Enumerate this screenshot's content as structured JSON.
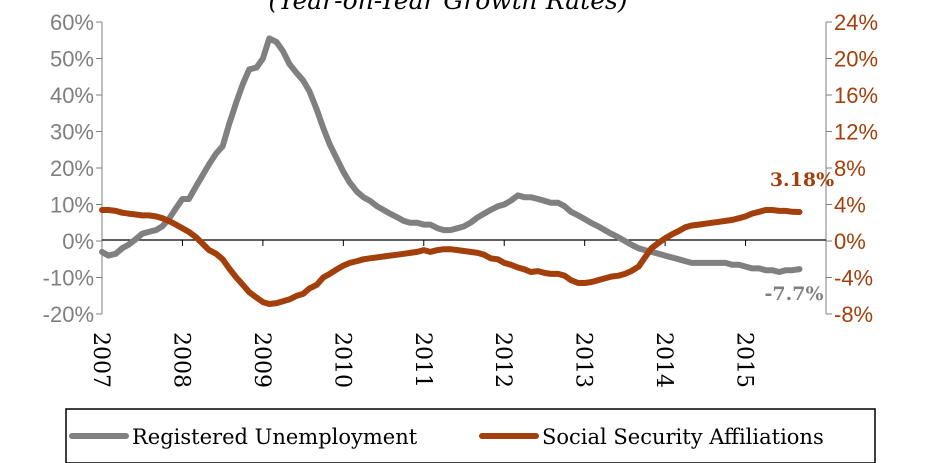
{
  "chart_data": {
    "type": "line",
    "title": "(Year-on-Year Growth Rates)",
    "x_tick_labels": [
      "2007",
      "2008",
      "2009",
      "2010",
      "2011",
      "2012",
      "2013",
      "2014",
      "2015"
    ],
    "y_left": {
      "ticks": [
        "60%",
        "50%",
        "40%",
        "30%",
        "20%",
        "10%",
        "0%",
        "-10%",
        "-20%"
      ],
      "range": [
        -20,
        60
      ]
    },
    "y_right": {
      "ticks": [
        "24%",
        "20%",
        "16%",
        "12%",
        "8%",
        "4%",
        "0%",
        "-4%",
        "-8%"
      ],
      "range": [
        -8,
        24
      ]
    },
    "series": [
      {
        "name": "Registered Unemployment",
        "axis": "left",
        "color": "#808080",
        "points": [
          [
            2007.0,
            -3
          ],
          [
            2007.08,
            -4
          ],
          [
            2007.17,
            -3.5
          ],
          [
            2007.25,
            -2
          ],
          [
            2007.33,
            -1
          ],
          [
            2007.42,
            0.5
          ],
          [
            2007.5,
            2
          ],
          [
            2007.58,
            2.5
          ],
          [
            2007.67,
            3
          ],
          [
            2007.75,
            4
          ],
          [
            2007.83,
            6
          ],
          [
            2007.92,
            9
          ],
          [
            2008.0,
            11.5
          ],
          [
            2008.08,
            11.5
          ],
          [
            2008.17,
            15
          ],
          [
            2008.25,
            18
          ],
          [
            2008.33,
            21
          ],
          [
            2008.42,
            24
          ],
          [
            2008.5,
            26
          ],
          [
            2008.58,
            32
          ],
          [
            2008.67,
            38
          ],
          [
            2008.75,
            43
          ],
          [
            2008.83,
            47
          ],
          [
            2008.92,
            47.5
          ],
          [
            2009.0,
            50
          ],
          [
            2009.08,
            55.5
          ],
          [
            2009.17,
            54.5
          ],
          [
            2009.25,
            52
          ],
          [
            2009.33,
            48.5
          ],
          [
            2009.42,
            46
          ],
          [
            2009.5,
            44
          ],
          [
            2009.58,
            41
          ],
          [
            2009.67,
            36
          ],
          [
            2009.75,
            31
          ],
          [
            2009.83,
            26.5
          ],
          [
            2009.92,
            22.5
          ],
          [
            2010.0,
            19
          ],
          [
            2010.08,
            16
          ],
          [
            2010.17,
            13.5
          ],
          [
            2010.25,
            12
          ],
          [
            2010.33,
            11
          ],
          [
            2010.42,
            9.5
          ],
          [
            2010.5,
            8.5
          ],
          [
            2010.58,
            7.5
          ],
          [
            2010.67,
            6.5
          ],
          [
            2010.75,
            5.5
          ],
          [
            2010.83,
            5
          ],
          [
            2010.92,
            5
          ],
          [
            2011.0,
            4.5
          ],
          [
            2011.08,
            4.5
          ],
          [
            2011.17,
            3.5
          ],
          [
            2011.25,
            3
          ],
          [
            2011.33,
            3
          ],
          [
            2011.42,
            3.5
          ],
          [
            2011.5,
            4
          ],
          [
            2011.58,
            5
          ],
          [
            2011.67,
            6.5
          ],
          [
            2011.75,
            7.5
          ],
          [
            2011.83,
            8.5
          ],
          [
            2011.92,
            9.5
          ],
          [
            2012.0,
            10
          ],
          [
            2012.08,
            11
          ],
          [
            2012.17,
            12.5
          ],
          [
            2012.25,
            12
          ],
          [
            2012.33,
            12
          ],
          [
            2012.42,
            11.5
          ],
          [
            2012.5,
            11
          ],
          [
            2012.58,
            10.5
          ],
          [
            2012.67,
            10.5
          ],
          [
            2012.75,
            9.5
          ],
          [
            2012.83,
            8
          ],
          [
            2012.92,
            7
          ],
          [
            2013.0,
            6
          ],
          [
            2013.08,
            5
          ],
          [
            2013.17,
            4
          ],
          [
            2013.25,
            3
          ],
          [
            2013.33,
            2
          ],
          [
            2013.42,
            1
          ],
          [
            2013.5,
            0
          ],
          [
            2013.58,
            -1
          ],
          [
            2013.67,
            -2
          ],
          [
            2013.75,
            -2.5
          ],
          [
            2013.83,
            -3
          ],
          [
            2013.92,
            -3.5
          ],
          [
            2014.0,
            -4
          ],
          [
            2014.08,
            -4.5
          ],
          [
            2014.17,
            -5
          ],
          [
            2014.25,
            -5.5
          ],
          [
            2014.33,
            -6
          ],
          [
            2014.42,
            -6
          ],
          [
            2014.5,
            -6
          ],
          [
            2014.58,
            -6
          ],
          [
            2014.67,
            -6
          ],
          [
            2014.75,
            -6
          ],
          [
            2014.83,
            -6.5
          ],
          [
            2014.92,
            -6.5
          ],
          [
            2015.0,
            -7
          ],
          [
            2015.08,
            -7.5
          ],
          [
            2015.17,
            -7.5
          ],
          [
            2015.25,
            -8
          ],
          [
            2015.33,
            -8
          ],
          [
            2015.42,
            -8.5
          ],
          [
            2015.5,
            -8
          ],
          [
            2015.58,
            -8
          ],
          [
            2015.67,
            -7.7
          ]
        ]
      },
      {
        "name": "Social Security Affiliations",
        "axis": "right",
        "color": "#a33f0b",
        "points": [
          [
            2007.0,
            3.4
          ],
          [
            2007.08,
            3.4
          ],
          [
            2007.17,
            3.3
          ],
          [
            2007.25,
            3.1
          ],
          [
            2007.33,
            3.0
          ],
          [
            2007.42,
            2.9
          ],
          [
            2007.5,
            2.8
          ],
          [
            2007.58,
            2.8
          ],
          [
            2007.67,
            2.7
          ],
          [
            2007.75,
            2.5
          ],
          [
            2007.83,
            2.2
          ],
          [
            2007.92,
            1.8
          ],
          [
            2008.0,
            1.4
          ],
          [
            2008.08,
            1.0
          ],
          [
            2008.17,
            0.4
          ],
          [
            2008.25,
            -0.3
          ],
          [
            2008.33,
            -1.0
          ],
          [
            2008.42,
            -1.4
          ],
          [
            2008.5,
            -2.0
          ],
          [
            2008.58,
            -3.0
          ],
          [
            2008.67,
            -4.0
          ],
          [
            2008.75,
            -4.8
          ],
          [
            2008.83,
            -5.6
          ],
          [
            2008.92,
            -6.2
          ],
          [
            2009.0,
            -6.7
          ],
          [
            2009.08,
            -6.9
          ],
          [
            2009.17,
            -6.8
          ],
          [
            2009.25,
            -6.6
          ],
          [
            2009.33,
            -6.4
          ],
          [
            2009.42,
            -6.0
          ],
          [
            2009.5,
            -5.8
          ],
          [
            2009.58,
            -5.2
          ],
          [
            2009.67,
            -4.8
          ],
          [
            2009.75,
            -4.0
          ],
          [
            2009.83,
            -3.6
          ],
          [
            2009.92,
            -3.1
          ],
          [
            2010.0,
            -2.7
          ],
          [
            2010.08,
            -2.4
          ],
          [
            2010.17,
            -2.2
          ],
          [
            2010.25,
            -2.0
          ],
          [
            2010.33,
            -1.9
          ],
          [
            2010.42,
            -1.8
          ],
          [
            2010.5,
            -1.7
          ],
          [
            2010.58,
            -1.6
          ],
          [
            2010.67,
            -1.5
          ],
          [
            2010.75,
            -1.4
          ],
          [
            2010.83,
            -1.3
          ],
          [
            2010.92,
            -1.2
          ],
          [
            2011.0,
            -1.0
          ],
          [
            2011.08,
            -1.2
          ],
          [
            2011.17,
            -1.0
          ],
          [
            2011.25,
            -0.9
          ],
          [
            2011.33,
            -0.9
          ],
          [
            2011.42,
            -1.0
          ],
          [
            2011.5,
            -1.1
          ],
          [
            2011.58,
            -1.2
          ],
          [
            2011.67,
            -1.3
          ],
          [
            2011.75,
            -1.5
          ],
          [
            2011.83,
            -1.9
          ],
          [
            2011.92,
            -2.0
          ],
          [
            2012.0,
            -2.4
          ],
          [
            2012.08,
            -2.6
          ],
          [
            2012.17,
            -2.9
          ],
          [
            2012.25,
            -3.1
          ],
          [
            2012.33,
            -3.4
          ],
          [
            2012.42,
            -3.3
          ],
          [
            2012.5,
            -3.5
          ],
          [
            2012.58,
            -3.6
          ],
          [
            2012.67,
            -3.6
          ],
          [
            2012.75,
            -3.8
          ],
          [
            2012.83,
            -4.3
          ],
          [
            2012.92,
            -4.6
          ],
          [
            2013.0,
            -4.6
          ],
          [
            2013.08,
            -4.5
          ],
          [
            2013.17,
            -4.3
          ],
          [
            2013.25,
            -4.1
          ],
          [
            2013.33,
            -3.9
          ],
          [
            2013.42,
            -3.8
          ],
          [
            2013.5,
            -3.6
          ],
          [
            2013.58,
            -3.3
          ],
          [
            2013.67,
            -2.8
          ],
          [
            2013.75,
            -1.8
          ],
          [
            2013.83,
            -0.8
          ],
          [
            2013.92,
            -0.2
          ],
          [
            2014.0,
            0.3
          ],
          [
            2014.08,
            0.7
          ],
          [
            2014.17,
            1.1
          ],
          [
            2014.25,
            1.5
          ],
          [
            2014.33,
            1.7
          ],
          [
            2014.42,
            1.8
          ],
          [
            2014.5,
            1.9
          ],
          [
            2014.58,
            2.0
          ],
          [
            2014.67,
            2.1
          ],
          [
            2014.75,
            2.2
          ],
          [
            2014.83,
            2.3
          ],
          [
            2014.92,
            2.5
          ],
          [
            2015.0,
            2.7
          ],
          [
            2015.08,
            3.0
          ],
          [
            2015.17,
            3.2
          ],
          [
            2015.25,
            3.4
          ],
          [
            2015.33,
            3.4
          ],
          [
            2015.42,
            3.3
          ],
          [
            2015.5,
            3.3
          ],
          [
            2015.58,
            3.2
          ],
          [
            2015.67,
            3.18
          ]
        ]
      }
    ],
    "annotations": [
      {
        "text": "3.18%",
        "series": "Social Security Affiliations",
        "color": "#a33f0b"
      },
      {
        "text": "-7.7%",
        "series": "Registered Unemployment",
        "color": "#808080"
      }
    ],
    "legend": {
      "position": "bottom",
      "entries": [
        "Registered Unemployment",
        "Social Security Affiliations"
      ]
    },
    "colors": {
      "left_axis_text": "#7f7f7f",
      "right_axis_text": "#a33f0b"
    }
  }
}
